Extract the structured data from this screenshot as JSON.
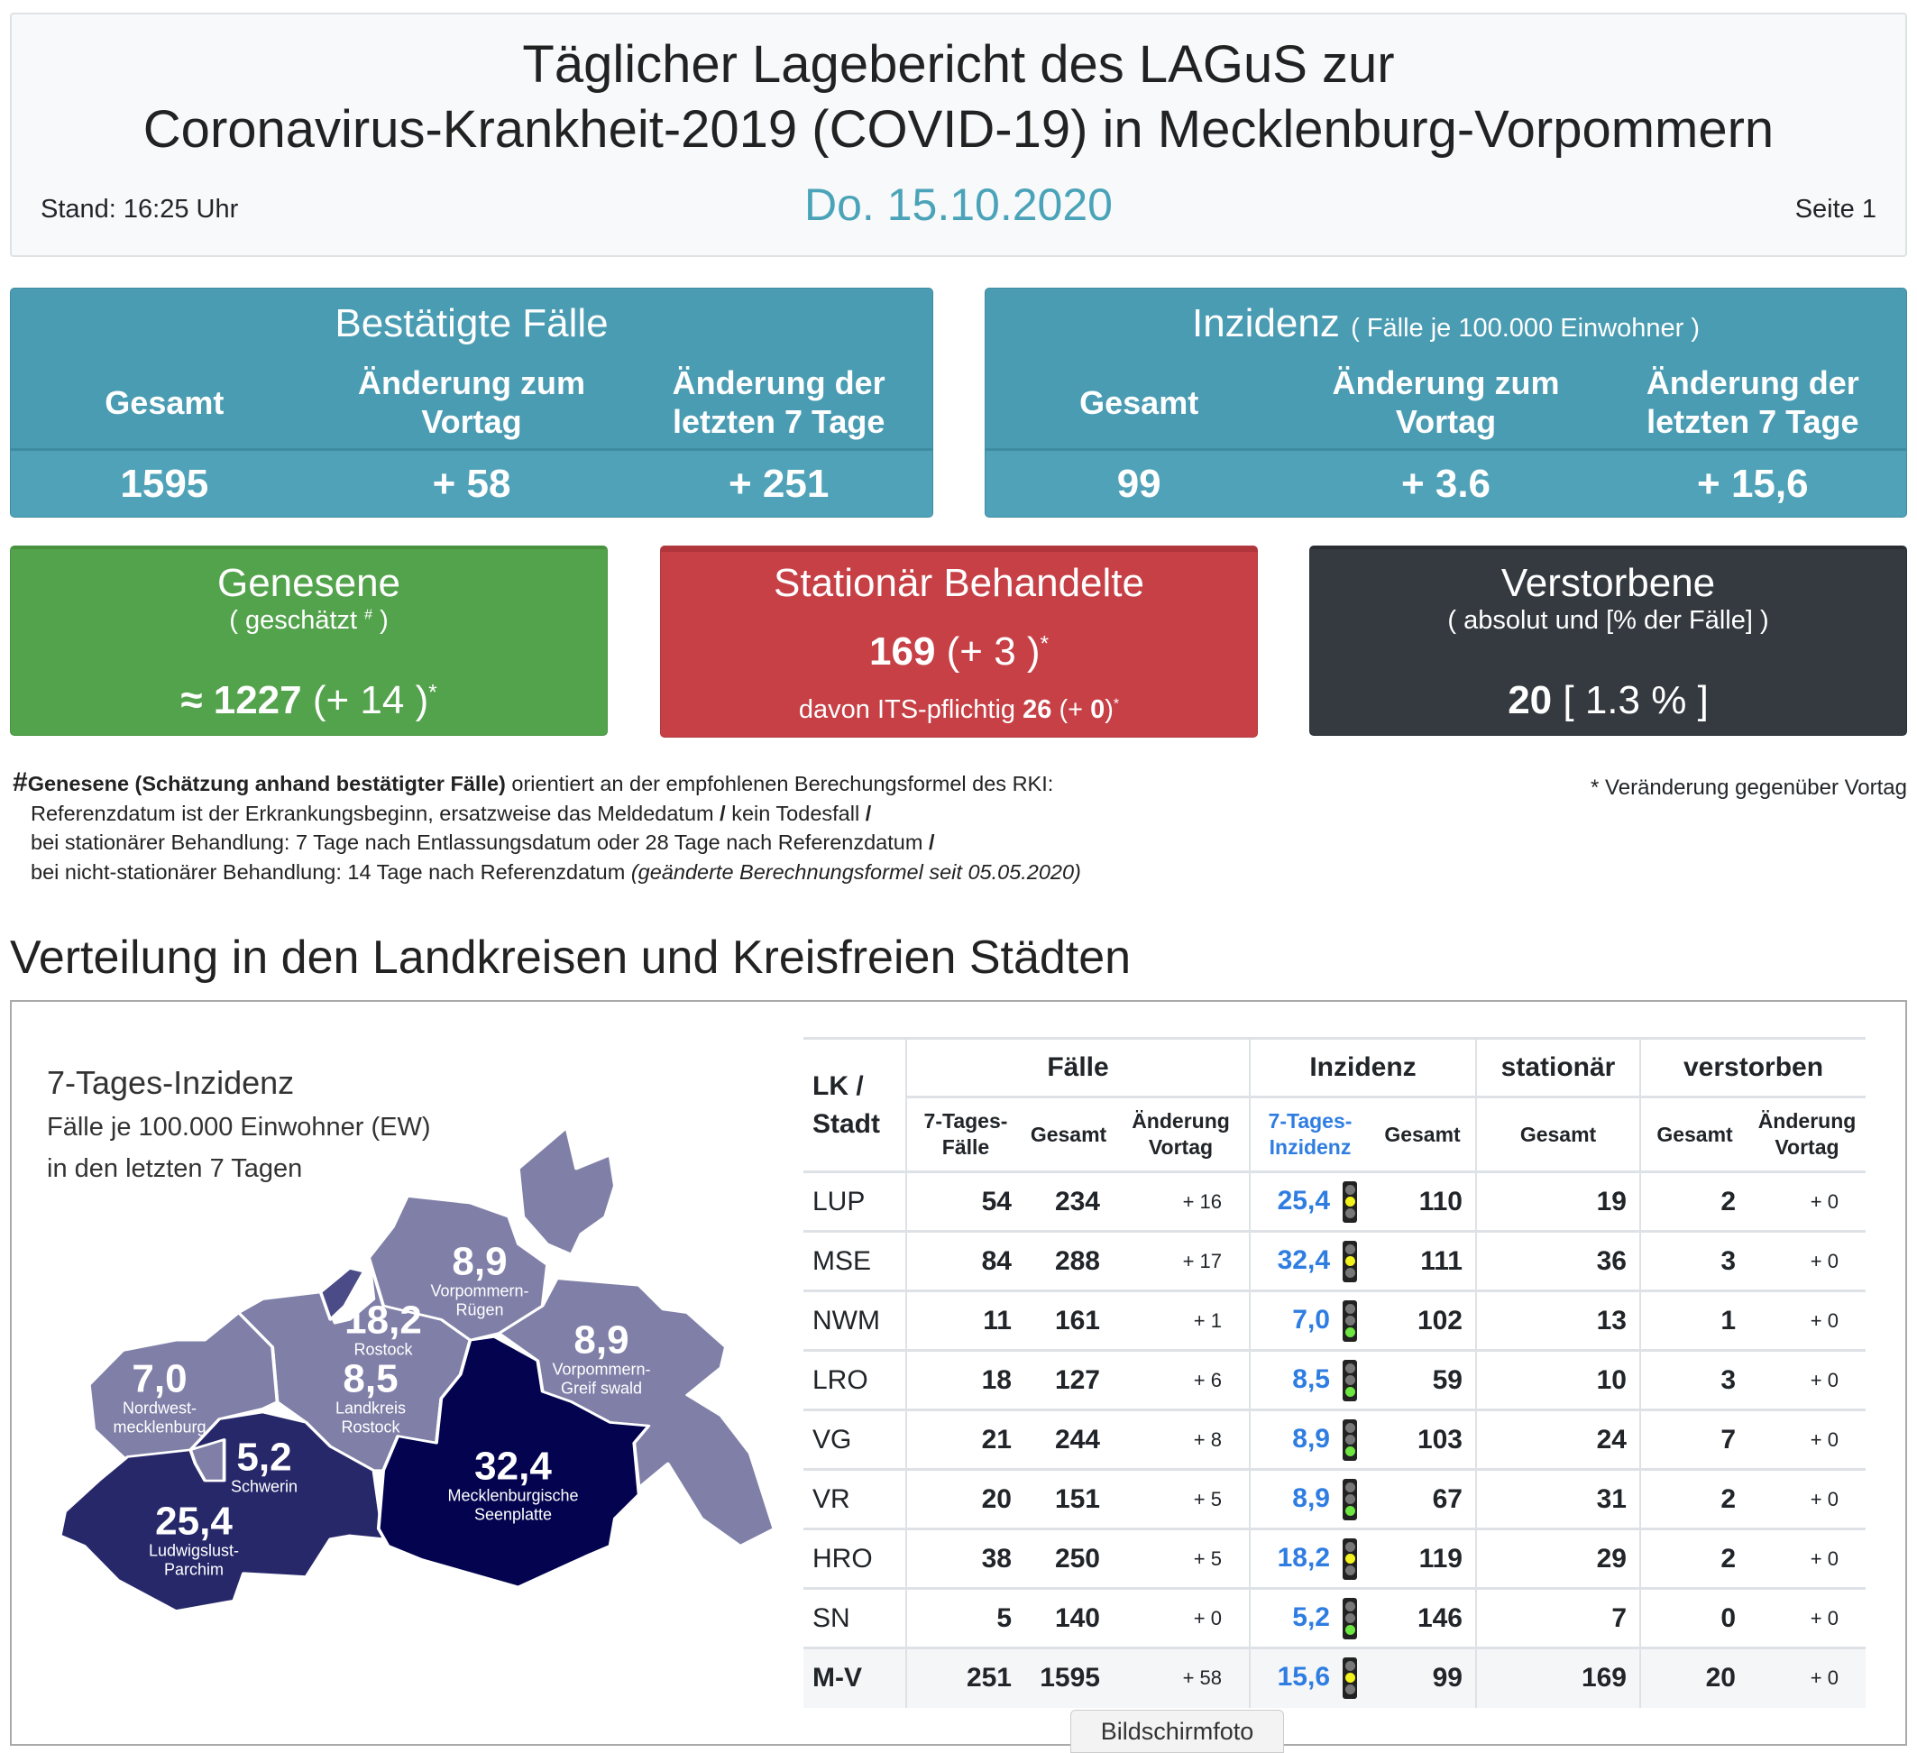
{
  "header": {
    "title_line1": "Täglicher Lagebericht des LAGuS zur",
    "title_line2": "Coronavirus-Krankheit-2019 (COVID-19) in Mecklenburg-Vorpommern",
    "date": "Do. 15.10.2020",
    "stand": "Stand: 16:25 Uhr",
    "page": "Seite 1"
  },
  "bestaetigt": {
    "title": "Bestätigte Fälle",
    "col1": "Gesamt",
    "col2": "Änderung zum Vortag",
    "col3": "Änderung der letzten 7 Tage",
    "val1": "1595",
    "val2": "+ 58",
    "val3": "+ 251"
  },
  "inzidenz": {
    "title": "Inzidenz",
    "subtitle": "( Fälle je 100.000 Einwohner )",
    "col1": "Gesamt",
    "col2": "Änderung zum Vortag",
    "col3": "Änderung der letzten 7 Tage",
    "val1": "99",
    "val2": "+ 3.6",
    "val3": "+ 15,6"
  },
  "genesene": {
    "title": "Genesene",
    "subtitle": "( geschätzt",
    "sub_mark": "#",
    "sub_close": ")",
    "approx": "≈",
    "value": "1227",
    "change": "(+ 14 )",
    "mark": "*"
  },
  "stationaer": {
    "title": "Stationär Behandelte",
    "value": "169",
    "change": "(+ 3 )",
    "mark": "*",
    "its_prefix": "davon ITS-pflichtig",
    "its_value": "26",
    "its_open": "(+",
    "its_change": "0",
    "its_close": ")",
    "its_mark": "*"
  },
  "verstorbene": {
    "title": "Verstorbene",
    "subtitle": "( absolut und [% der Fälle] )",
    "value": "20",
    "percent": "[ 1.3 % ]"
  },
  "footnote": {
    "hash": "#",
    "bold": "Genesene (Schätzung anhand bestätigter Fälle)",
    "line1": " orientiert an der empfohlenen Berechungsformel des RKI:",
    "line2": "Referenzdatum ist der Erkrankungsbeginn, ersatzweise das Meldedatum",
    "line2b": "kein Todesfall",
    "line3": "bei stationärer Behandlung: 7 Tage nach Entlassungsdatum oder 28 Tage nach Referenzdatum",
    "line4": "bei nicht-stationärer Behandlung: 14 Tage nach Referenzdatum",
    "line4_italic": "(geänderte Berechnungsformel seit 05.05.2020)",
    "slash": "/",
    "star_note": "* Veränderung gegenüber Vortag"
  },
  "section": {
    "title": "Verteilung in den Landkreisen und Kreisfreien Städten"
  },
  "map": {
    "title": "7-Tages-Inzidenz",
    "subtitle1": "Fälle je 100.000 Einwohner (EW)",
    "subtitle2": "in den letzten 7 Tagen",
    "regions": [
      {
        "value": "8,9",
        "name1": "Vorpommern-",
        "name2": "Rügen"
      },
      {
        "value": "18,2",
        "name1": "Rostock",
        "name2": ""
      },
      {
        "value": "8,9",
        "name1": "Vorpommern-",
        "name2": "Greif swald"
      },
      {
        "value": "7,0",
        "name1": "Nordwest-",
        "name2": "mecklenburg"
      },
      {
        "value": "8,5",
        "name1": "Landkreis",
        "name2": "Rostock"
      },
      {
        "value": "5,2",
        "name1": "Schwerin",
        "name2": ""
      },
      {
        "value": "32,4",
        "name1": "Mecklenburgische",
        "name2": "Seenplatte"
      },
      {
        "value": "25,4",
        "name1": "Ludwigslust-",
        "name2": "Parchim"
      }
    ],
    "colors": {
      "low": "#7f7fa8",
      "mid": "#4b4b88",
      "high": "#27286a",
      "highest": "#03034f"
    }
  },
  "table": {
    "lk_header": "LK / Stadt",
    "group_faelle": "Fälle",
    "group_inzidenz": "Inzidenz",
    "group_stationaer": "stationär",
    "group_verstorben": "verstorben",
    "sub": [
      "7-Tages- Fälle",
      "Gesamt",
      "Änderung Vortag",
      "7-Tages- Inzidenz",
      "Gesamt",
      "Gesamt",
      "Gesamt",
      "Änderung Vortag"
    ],
    "rows": [
      {
        "lk": "LUP",
        "f7": "54",
        "fg": "234",
        "fa": "+ 16",
        "inz": "25,4",
        "light": "yellow",
        "ig": "110",
        "st": "19",
        "vg": "2",
        "va": "+ 0"
      },
      {
        "lk": "MSE",
        "f7": "84",
        "fg": "288",
        "fa": "+ 17",
        "inz": "32,4",
        "light": "yellow",
        "ig": "111",
        "st": "36",
        "vg": "3",
        "va": "+ 0"
      },
      {
        "lk": "NWM",
        "f7": "11",
        "fg": "161",
        "fa": "+ 1",
        "inz": "7,0",
        "light": "green",
        "ig": "102",
        "st": "13",
        "vg": "1",
        "va": "+ 0"
      },
      {
        "lk": "LRO",
        "f7": "18",
        "fg": "127",
        "fa": "+ 6",
        "inz": "8,5",
        "light": "green",
        "ig": "59",
        "st": "10",
        "vg": "3",
        "va": "+ 0"
      },
      {
        "lk": "VG",
        "f7": "21",
        "fg": "244",
        "fa": "+ 8",
        "inz": "8,9",
        "light": "green",
        "ig": "103",
        "st": "24",
        "vg": "7",
        "va": "+ 0"
      },
      {
        "lk": "VR",
        "f7": "20",
        "fg": "151",
        "fa": "+ 5",
        "inz": "8,9",
        "light": "green",
        "ig": "67",
        "st": "31",
        "vg": "2",
        "va": "+ 0"
      },
      {
        "lk": "HRO",
        "f7": "38",
        "fg": "250",
        "fa": "+ 5",
        "inz": "18,2",
        "light": "yellow",
        "ig": "119",
        "st": "29",
        "vg": "2",
        "va": "+ 0"
      },
      {
        "lk": "SN",
        "f7": "5",
        "fg": "140",
        "fa": "+ 0",
        "inz": "5,2",
        "light": "green",
        "ig": "146",
        "st": "7",
        "vg": "0",
        "va": "+ 0"
      },
      {
        "lk": "M-V",
        "f7": "251",
        "fg": "1595",
        "fa": "+ 58",
        "inz": "15,6",
        "light": "yellow",
        "ig": "99",
        "st": "169",
        "vg": "20",
        "va": "+ 0",
        "total": true
      }
    ]
  },
  "overlay": {
    "screenshot_label": "Bildschirmfoto"
  },
  "colors": {
    "blue": "#4a9cb3",
    "green": "#53a34c",
    "red": "#c64046",
    "dark": "#343a40",
    "link": "#2f7de1",
    "light_yellow": "#f2f21e",
    "light_green": "#6ce640"
  }
}
